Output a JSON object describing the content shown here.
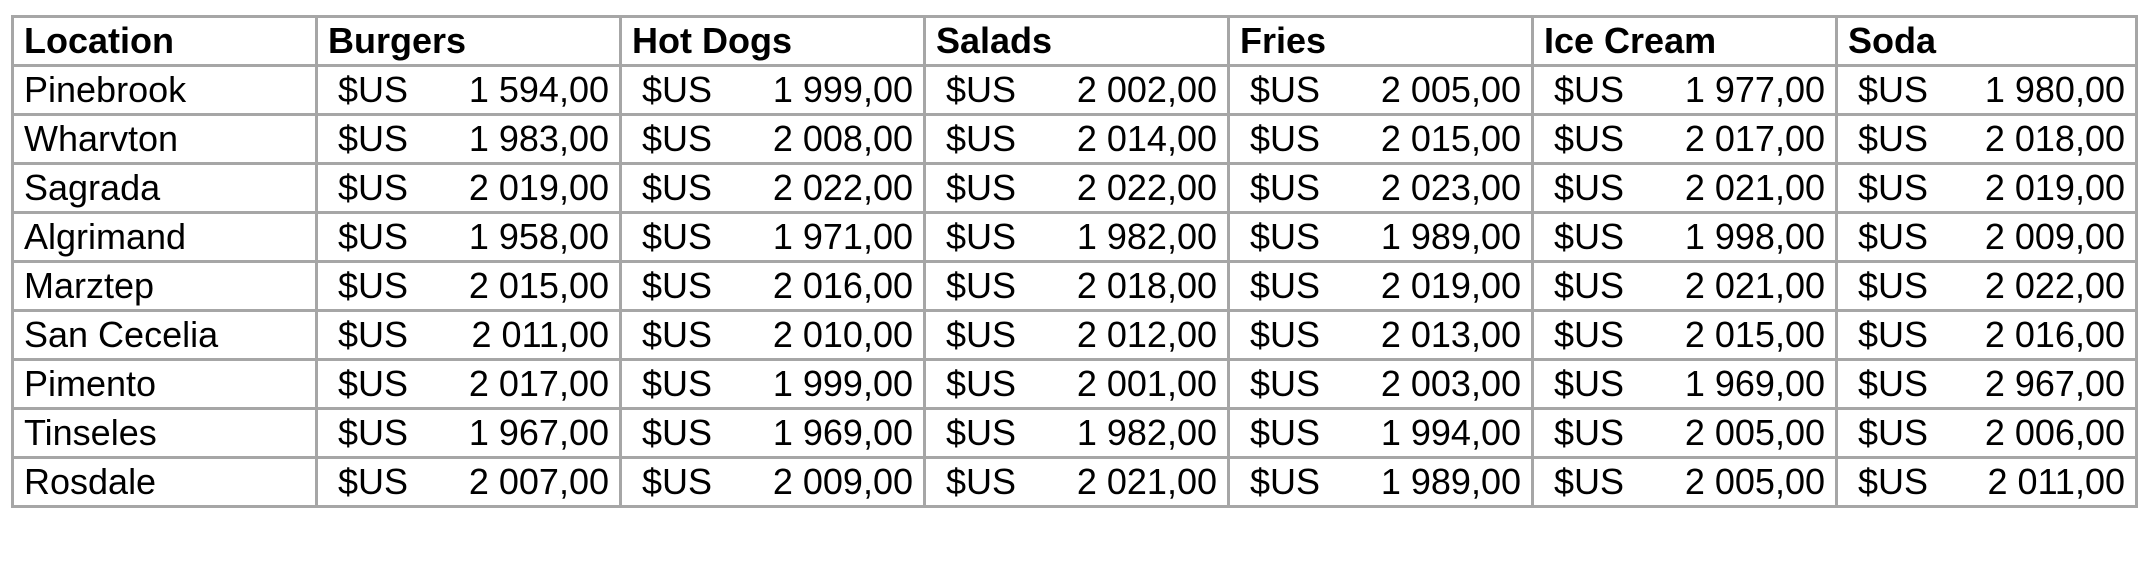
{
  "table": {
    "headers": [
      "Location",
      "Burgers",
      "Hot Dogs",
      "Salads",
      "Fries",
      "Ice Cream",
      "Soda"
    ],
    "currency": "$US",
    "rows": [
      {
        "location": "Pinebrook",
        "values": [
          "1 594,00",
          "1 999,00",
          "2 002,00",
          "2 005,00",
          "1 977,00",
          "1 980,00"
        ]
      },
      {
        "location": "Wharvton",
        "values": [
          "1 983,00",
          "2 008,00",
          "2 014,00",
          "2 015,00",
          "2 017,00",
          "2 018,00"
        ]
      },
      {
        "location": "Sagrada",
        "values": [
          "2 019,00",
          "2 022,00",
          "2 022,00",
          "2 023,00",
          "2 021,00",
          "2 019,00"
        ]
      },
      {
        "location": "Algrimand",
        "values": [
          "1 958,00",
          "1 971,00",
          "1 982,00",
          "1 989,00",
          "1 998,00",
          "2 009,00"
        ]
      },
      {
        "location": "Marztep",
        "values": [
          "2 015,00",
          "2 016,00",
          "2 018,00",
          "2 019,00",
          "2 021,00",
          "2 022,00"
        ]
      },
      {
        "location": "San Cecelia",
        "values": [
          "2 011,00",
          "2 010,00",
          "2 012,00",
          "2 013,00",
          "2 015,00",
          "2 016,00"
        ]
      },
      {
        "location": "Pimento",
        "values": [
          "2 017,00",
          "1 999,00",
          "2 001,00",
          "2 003,00",
          "1 969,00",
          "2 967,00"
        ]
      },
      {
        "location": "Tinseles",
        "values": [
          "1 967,00",
          "1 969,00",
          "1 982,00",
          "1 994,00",
          "2 005,00",
          "2 006,00"
        ]
      },
      {
        "location": "Rosdale",
        "values": [
          "2 007,00",
          "2 009,00",
          "2 021,00",
          "1 989,00",
          "2 005,00",
          "2 011,00"
        ]
      }
    ]
  }
}
